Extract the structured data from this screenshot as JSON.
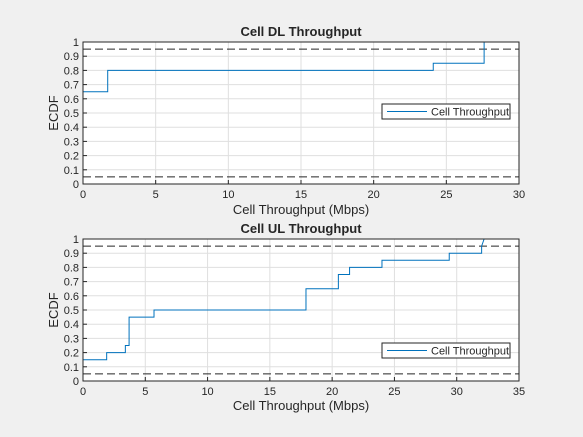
{
  "chart_data": [
    {
      "type": "line",
      "step": true,
      "title": "Cell DL Throughput",
      "xlabel": "Cell Throughput (Mbps)",
      "ylabel": "ECDF",
      "xlim": [
        0,
        30
      ],
      "ylim": [
        0,
        1
      ],
      "xticks": [
        0,
        5,
        10,
        15,
        20,
        25,
        30
      ],
      "yticks": [
        0,
        0.1,
        0.2,
        0.3,
        0.4,
        0.5,
        0.6,
        0.7,
        0.8,
        0.9,
        1
      ],
      "grid": true,
      "legend": {
        "position": "right",
        "entries": [
          "Cell Throughput"
        ]
      },
      "series": [
        {
          "name": "Cell Throughput",
          "color": "#0072bd",
          "x": [
            0,
            1.7,
            1.7,
            24.1,
            24.1,
            27.6,
            27.6
          ],
          "y": [
            0.65,
            0.65,
            0.8,
            0.8,
            0.85,
            0.85,
            1.0
          ]
        }
      ],
      "reference_lines": [
        {
          "y": 0.95,
          "style": "dashed",
          "color": "#262626"
        },
        {
          "y": 0.05,
          "style": "dashed",
          "color": "#262626"
        }
      ]
    },
    {
      "type": "line",
      "step": true,
      "title": "Cell UL Throughput",
      "xlabel": "Cell Throughput (Mbps)",
      "ylabel": "ECDF",
      "xlim": [
        0,
        35
      ],
      "ylim": [
        0,
        1
      ],
      "xticks": [
        0,
        5,
        10,
        15,
        20,
        25,
        30,
        35
      ],
      "yticks": [
        0,
        0.1,
        0.2,
        0.3,
        0.4,
        0.5,
        0.6,
        0.7,
        0.8,
        0.9,
        1
      ],
      "grid": true,
      "legend": {
        "position": "right",
        "entries": [
          "Cell Throughput"
        ]
      },
      "series": [
        {
          "name": "Cell Throughput",
          "color": "#0072bd",
          "x": [
            0,
            1.9,
            1.9,
            3.4,
            3.4,
            3.7,
            3.7,
            5.7,
            5.7,
            17.9,
            17.9,
            20.5,
            20.5,
            21.4,
            21.4,
            24.0,
            24.0,
            29.4,
            29.4,
            32.0,
            32.0,
            32.2
          ],
          "y": [
            0.15,
            0.15,
            0.2,
            0.2,
            0.25,
            0.25,
            0.45,
            0.45,
            0.5,
            0.5,
            0.65,
            0.65,
            0.75,
            0.75,
            0.8,
            0.8,
            0.85,
            0.85,
            0.9,
            0.9,
            0.95,
            1.0
          ]
        }
      ],
      "reference_lines": [
        {
          "y": 0.95,
          "style": "dashed",
          "color": "#262626"
        },
        {
          "y": 0.05,
          "style": "dashed",
          "color": "#262626"
        }
      ]
    }
  ]
}
